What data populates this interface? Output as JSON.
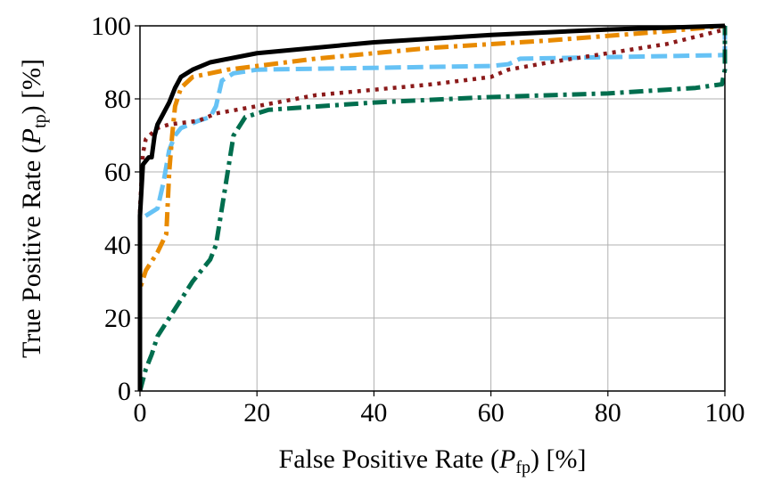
{
  "chart_data": {
    "type": "line",
    "xlabel": [
      "False Positive Rate (",
      "P",
      "fp",
      ") [%]"
    ],
    "ylabel": [
      "True Positive Rate (",
      "P",
      "tp",
      ") [%]"
    ],
    "xlim": [
      0,
      100
    ],
    "ylim": [
      0,
      100
    ],
    "xticks": [
      0,
      20,
      40,
      60,
      80,
      100
    ],
    "yticks": [
      0,
      20,
      40,
      60,
      80,
      100
    ],
    "grid": true,
    "series": [
      {
        "color": "#66c2f5",
        "dash": "dashed",
        "x": [
          0,
          0,
          1,
          3,
          4,
          5,
          6,
          7,
          10,
          12,
          13,
          14,
          16,
          20,
          60,
          63,
          65,
          100,
          100
        ],
        "values": [
          0,
          47,
          48,
          50,
          57,
          66,
          70,
          72,
          74,
          75,
          78,
          85,
          87,
          88,
          89,
          89.5,
          91,
          92,
          100
        ]
      },
      {
        "color": "#8b1a1a",
        "dash": "dotted",
        "x": [
          0,
          0,
          0.5,
          1,
          3,
          5,
          10,
          13,
          20,
          30,
          50,
          60,
          63,
          70,
          90,
          100,
          100
        ],
        "values": [
          0,
          50,
          65,
          69,
          72,
          73,
          74,
          76,
          78,
          81,
          84,
          86,
          88,
          90,
          95,
          99,
          100
        ]
      },
      {
        "color": "#006e4e",
        "dash": "dashdot",
        "x": [
          0,
          1,
          2,
          3,
          5,
          7,
          9,
          12,
          13,
          14,
          15,
          16,
          18,
          22,
          40,
          60,
          80,
          95,
          99.5,
          100,
          100
        ],
        "values": [
          0,
          6,
          10,
          15,
          20,
          25,
          30,
          36,
          40,
          50,
          60,
          70,
          75,
          77,
          79,
          80.5,
          81.5,
          83,
          84,
          88,
          100
        ]
      },
      {
        "color": "#e88a00",
        "dash": "dashdot",
        "x": [
          0,
          0,
          1,
          3,
          4.5,
          5,
          5.5,
          6,
          7,
          9,
          15,
          30,
          50,
          70,
          90,
          100
        ],
        "values": [
          0,
          28,
          33,
          38,
          43,
          60,
          70,
          78,
          83,
          86,
          88,
          91,
          94,
          96,
          98.5,
          100
        ]
      },
      {
        "color": "#000000",
        "dash": "solid",
        "x": [
          0,
          0,
          0.5,
          1.5,
          2,
          2.5,
          3,
          4,
          5,
          6,
          7,
          9,
          12,
          20,
          40,
          60,
          80,
          100
        ],
        "values": [
          0,
          48,
          62,
          64,
          64,
          70,
          73,
          76,
          79,
          83,
          86,
          88,
          90,
          92.5,
          95.5,
          97.5,
          99,
          100
        ]
      }
    ]
  }
}
